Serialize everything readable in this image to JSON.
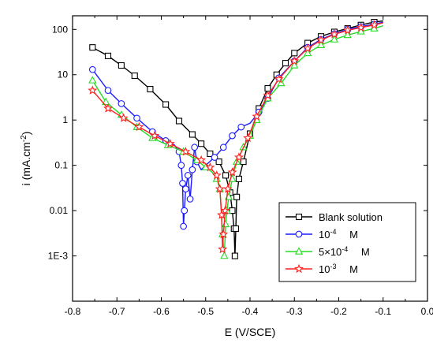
{
  "chart_data": {
    "type": "line",
    "xlabel": "E (V/SCE)",
    "ylabel": "i (mA.cm",
    "ylabel_sup": "-2",
    "ylabel_close": ")",
    "xlim": [
      -0.8,
      0.0
    ],
    "ylim": [
      0.0001,
      200
    ],
    "y_scale": "log",
    "x_ticks": [
      "-0.8",
      "-0.7",
      "-0.6",
      "-0.5",
      "-0.4",
      "-0.3",
      "-0.2",
      "-0.1",
      "0.0"
    ],
    "y_ticks": [
      "100",
      "10",
      "1",
      "0.1",
      "0.01",
      "1E-3"
    ],
    "y_tick_values": [
      100,
      10,
      1,
      0.1,
      0.01,
      0.001
    ],
    "grid": false,
    "legend_position": "bottom-right",
    "series": [
      {
        "name": "Blank solution",
        "color": "#000000",
        "marker": "square",
        "x": [
          -0.755,
          -0.72,
          -0.69,
          -0.66,
          -0.625,
          -0.59,
          -0.56,
          -0.53,
          -0.51,
          -0.49,
          -0.47,
          -0.455,
          -0.445,
          -0.44,
          -0.436,
          -0.434,
          -0.432,
          -0.43,
          -0.425,
          -0.415,
          -0.4,
          -0.38,
          -0.36,
          -0.34,
          -0.32,
          -0.3,
          -0.27,
          -0.24,
          -0.21,
          -0.18,
          -0.15,
          -0.12,
          -0.1
        ],
        "y": [
          40,
          26,
          16,
          9.5,
          4.8,
          2.2,
          0.95,
          0.48,
          0.3,
          0.18,
          0.12,
          0.06,
          0.025,
          0.01,
          0.004,
          0.001,
          0.004,
          0.02,
          0.05,
          0.12,
          0.5,
          1.8,
          5,
          10,
          18,
          30,
          50,
          70,
          88,
          105,
          125,
          145,
          155
        ]
      },
      {
        "name": "10",
        "name_sup": "-4",
        "name_suffix": "M",
        "color": "#1a1aff",
        "marker": "circle",
        "x": [
          -0.755,
          -0.72,
          -0.69,
          -0.655,
          -0.62,
          -0.59,
          -0.57,
          -0.56,
          -0.555,
          -0.552,
          -0.55,
          -0.548,
          -0.545,
          -0.54,
          -0.535,
          -0.53,
          -0.525,
          -0.52,
          -0.51,
          -0.5,
          -0.48,
          -0.46,
          -0.44,
          -0.42,
          -0.4,
          -0.38,
          -0.36,
          -0.335,
          -0.3,
          -0.27,
          -0.24,
          -0.21,
          -0.18,
          -0.15,
          -0.12,
          -0.1
        ],
        "y": [
          13,
          4.5,
          2.3,
          1.1,
          0.55,
          0.35,
          0.28,
          0.2,
          0.1,
          0.04,
          0.0045,
          0.01,
          0.03,
          0.06,
          0.018,
          0.08,
          0.25,
          0.12,
          0.08,
          0.1,
          0.15,
          0.25,
          0.45,
          0.7,
          0.85,
          1.5,
          3,
          8.5,
          20,
          40,
          60,
          80,
          100,
          115,
          130,
          145
        ]
      },
      {
        "name": "5×10",
        "name_sup": "-4",
        "name_suffix": "M",
        "color": "#22dd22",
        "marker": "triangle",
        "x": [
          -0.755,
          -0.725,
          -0.69,
          -0.655,
          -0.62,
          -0.585,
          -0.55,
          -0.52,
          -0.5,
          -0.485,
          -0.475,
          -0.468,
          -0.462,
          -0.458,
          -0.455,
          -0.452,
          -0.448,
          -0.44,
          -0.43,
          -0.415,
          -0.4,
          -0.385,
          -0.36,
          -0.33,
          -0.3,
          -0.27,
          -0.24,
          -0.21,
          -0.18,
          -0.15,
          -0.12,
          -0.1
        ],
        "y": [
          7.5,
          2.5,
          1.3,
          0.7,
          0.4,
          0.28,
          0.2,
          0.13,
          0.09,
          0.07,
          0.05,
          0.03,
          0.003,
          0.001,
          0.005,
          0.01,
          0.02,
          0.05,
          0.12,
          0.25,
          0.45,
          1.0,
          3,
          6.5,
          16,
          30,
          45,
          60,
          75,
          90,
          105,
          120
        ]
      },
      {
        "name": "10",
        "name_sup": "-3",
        "name_suffix": "M",
        "color": "#ff2020",
        "marker": "star",
        "x": [
          -0.755,
          -0.72,
          -0.685,
          -0.65,
          -0.615,
          -0.58,
          -0.545,
          -0.51,
          -0.49,
          -0.475,
          -0.468,
          -0.464,
          -0.462,
          -0.46,
          -0.456,
          -0.45,
          -0.44,
          -0.425,
          -0.405,
          -0.385,
          -0.36,
          -0.335,
          -0.3,
          -0.27,
          -0.24,
          -0.21,
          -0.18,
          -0.15,
          -0.12,
          -0.1
        ],
        "y": [
          4.5,
          1.8,
          1.1,
          0.7,
          0.45,
          0.3,
          0.2,
          0.13,
          0.09,
          0.06,
          0.03,
          0.008,
          0.0014,
          0.003,
          0.01,
          0.03,
          0.07,
          0.15,
          0.4,
          1.2,
          3.5,
          8,
          20,
          38,
          58,
          78,
          95,
          110,
          125,
          140
        ]
      }
    ]
  }
}
